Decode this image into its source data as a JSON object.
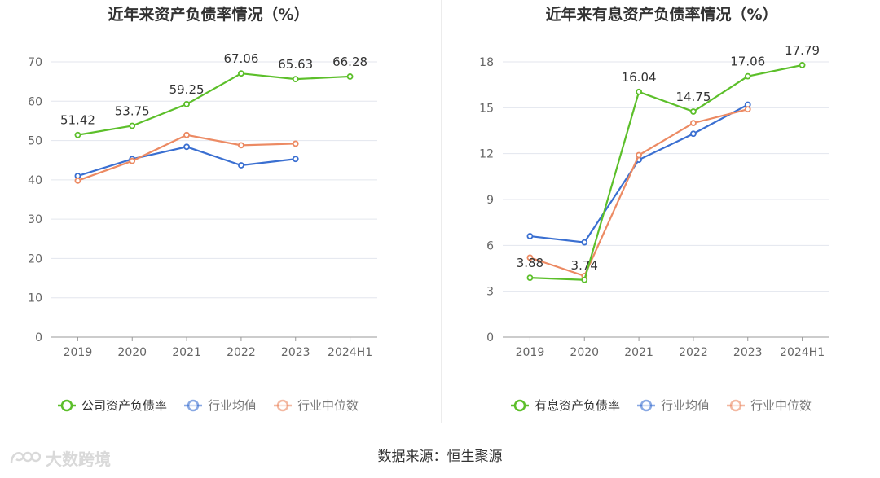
{
  "colors": {
    "company": "#5cbf2a",
    "industry_avg": "#3a6fd1",
    "industry_median": "#ec8a63",
    "grid": "#e3e6ee",
    "axis_text": "#666666",
    "title_text": "#333333",
    "label_text": "#333333"
  },
  "watermark": {
    "text": "大数跨境",
    "icon": "logo-mark-icon"
  },
  "footer": {
    "source": "数据来源：恒生聚源"
  },
  "chart_data": [
    {
      "type": "line",
      "title": "近年来资产负债率情况（%）",
      "categories": [
        "2019",
        "2020",
        "2021",
        "2022",
        "2023",
        "2024H1"
      ],
      "ylim": [
        0,
        70
      ],
      "yticks": [
        0,
        10,
        20,
        30,
        40,
        50,
        60,
        70
      ],
      "grid": true,
      "legend_position": "bottom-center",
      "series": [
        {
          "name": "公司资产负债率",
          "color_key": "company",
          "values": [
            51.42,
            53.75,
            59.25,
            67.06,
            65.63,
            66.28
          ],
          "labels": [
            "51.42",
            "53.75",
            "59.25",
            "67.06",
            "65.63",
            "66.28"
          ]
        },
        {
          "name": "行业均值",
          "color_key": "industry_avg",
          "values": [
            41.0,
            45.3,
            48.4,
            43.7,
            45.3,
            null
          ]
        },
        {
          "name": "行业中位数",
          "color_key": "industry_median",
          "values": [
            39.8,
            44.8,
            51.4,
            48.8,
            49.2,
            null
          ]
        }
      ]
    },
    {
      "type": "line",
      "title": "近年来有息资产负债率情况（%）",
      "categories": [
        "2019",
        "2020",
        "2021",
        "2022",
        "2023",
        "2024H1"
      ],
      "ylim": [
        0,
        18
      ],
      "yticks": [
        0,
        3,
        6,
        9,
        12,
        15,
        18
      ],
      "grid": true,
      "legend_position": "bottom-center",
      "series": [
        {
          "name": "有息资产负债率",
          "color_key": "company",
          "values": [
            3.88,
            3.74,
            16.04,
            14.75,
            17.06,
            17.79
          ],
          "labels": [
            "3.88",
            "3.74",
            "16.04",
            "14.75",
            "17.06",
            "17.79"
          ]
        },
        {
          "name": "行业均值",
          "color_key": "industry_avg",
          "values": [
            6.6,
            6.2,
            11.6,
            13.3,
            15.2,
            null
          ]
        },
        {
          "name": "行业中位数",
          "color_key": "industry_median",
          "values": [
            5.2,
            4.0,
            11.9,
            14.0,
            14.9,
            null
          ]
        }
      ]
    }
  ]
}
